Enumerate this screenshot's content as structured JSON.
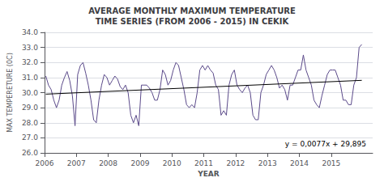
{
  "chart_data": {
    "type": "line",
    "title": "AVERAGE MONTHLY MAXIMUM TEMPERATURE\nTIME SERIES (FROM 2006 - 2015) IN CEKIK",
    "x_label": "YEAR",
    "y_label": "MAX TEMPERETURE (0C)",
    "x": [
      2006.041667,
      2006.125,
      2006.208333,
      2006.291667,
      2006.375,
      2006.458333,
      2006.541667,
      2006.625,
      2006.708333,
      2006.791667,
      2006.875,
      2006.958333,
      2007.041667,
      2007.125,
      2007.208333,
      2007.291667,
      2007.375,
      2007.458333,
      2007.541667,
      2007.625,
      2007.708333,
      2007.791667,
      2007.875,
      2007.958333,
      2008.041667,
      2008.125,
      2008.208333,
      2008.291667,
      2008.375,
      2008.458333,
      2008.541667,
      2008.625,
      2008.708333,
      2008.791667,
      2008.875,
      2008.958333,
      2009.041667,
      2009.125,
      2009.208333,
      2009.291667,
      2009.375,
      2009.458333,
      2009.541667,
      2009.625,
      2009.708333,
      2009.791667,
      2009.875,
      2009.958333,
      2010.041667,
      2010.125,
      2010.208333,
      2010.291667,
      2010.375,
      2010.458333,
      2010.541667,
      2010.625,
      2010.708333,
      2010.791667,
      2010.875,
      2010.958333,
      2011.041667,
      2011.125,
      2011.208333,
      2011.291667,
      2011.375,
      2011.458333,
      2011.541667,
      2011.625,
      2011.708333,
      2011.791667,
      2011.875,
      2011.958333,
      2012.041667,
      2012.125,
      2012.208333,
      2012.291667,
      2012.375,
      2012.458333,
      2012.541667,
      2012.625,
      2012.708333,
      2012.791667,
      2012.875,
      2012.958333,
      2013.041667,
      2013.125,
      2013.208333,
      2013.291667,
      2013.375,
      2013.458333,
      2013.541667,
      2013.625,
      2013.708333,
      2013.791667,
      2013.875,
      2013.958333,
      2014.041667,
      2014.125,
      2014.208333,
      2014.291667,
      2014.375,
      2014.458333,
      2014.541667,
      2014.625,
      2014.708333,
      2014.791667,
      2014.875,
      2014.958333,
      2015.041667,
      2015.125,
      2015.208333,
      2015.291667,
      2015.375,
      2015.458333,
      2015.541667,
      2015.625,
      2015.708333,
      2015.791667,
      2015.875,
      2015.958333
    ],
    "series": [
      {
        "color": "#5B4A8A",
        "values": [
          31.1,
          30.5,
          30.2,
          29.5,
          29.0,
          29.5,
          30.5,
          31.0,
          31.4,
          30.8,
          29.8,
          27.8,
          31.2,
          31.8,
          32.0,
          31.3,
          30.5,
          29.5,
          28.2,
          28.0,
          29.5,
          30.5,
          31.2,
          31.0,
          30.5,
          30.8,
          31.1,
          30.9,
          30.4,
          30.2,
          30.5,
          30.0,
          28.5,
          28.0,
          28.5,
          27.8,
          30.5,
          30.5,
          30.5,
          30.3,
          30.0,
          29.5,
          29.5,
          30.2,
          31.5,
          31.2,
          30.5,
          30.8,
          31.5,
          32.0,
          31.8,
          31.0,
          30.2,
          29.2,
          29.0,
          29.2,
          29.0,
          30.0,
          31.5,
          31.8,
          31.5,
          31.8,
          31.5,
          31.3,
          30.5,
          30.2,
          28.5,
          28.8,
          28.5,
          30.5,
          31.2,
          31.5,
          30.5,
          30.2,
          30.0,
          30.3,
          30.5,
          30.0,
          28.5,
          28.2,
          28.2,
          30.0,
          30.5,
          31.2,
          31.5,
          31.8,
          31.5,
          31.0,
          30.3,
          30.5,
          30.2,
          29.5,
          30.5,
          30.5,
          31.0,
          31.5,
          31.5,
          32.5,
          31.5,
          31.0,
          30.5,
          29.5,
          29.2,
          29.0,
          29.8,
          30.5,
          31.2,
          31.5,
          31.5,
          31.5,
          31.0,
          30.5,
          29.5,
          29.5,
          29.2,
          29.2,
          30.5,
          31.0,
          33.0,
          33.2
        ]
      },
      {
        "color": "#000000",
        "x": [
          2006.041667,
          2015.958333
        ],
        "values": [
          29.89885,
          30.81515
        ]
      }
    ],
    "annotations": [
      "y = 0,0077x + 29,895"
    ],
    "xlim": [
      2006.0,
      2016.3
    ],
    "xticks": [
      2006,
      2007,
      2008,
      2009,
      2010,
      2011,
      2012,
      2013,
      2014,
      2015
    ],
    "ylim": [
      26.0,
      34.0
    ],
    "yticks": [
      {
        "value": 26,
        "label": "26.0"
      },
      {
        "value": 27,
        "label": "27.0"
      },
      {
        "value": 28,
        "label": "28.0"
      },
      {
        "value": 29,
        "label": "29.0"
      },
      {
        "value": 30,
        "label": "30.0"
      },
      {
        "value": 31,
        "label": "31.0"
      },
      {
        "value": 32,
        "label": "32.0"
      },
      {
        "value": 33,
        "label": "33.0"
      },
      {
        "value": 34,
        "label": "34.0"
      }
    ],
    "grid": true
  }
}
